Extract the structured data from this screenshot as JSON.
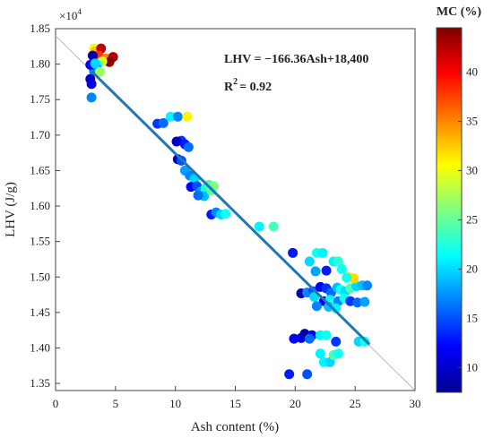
{
  "chart_data": {
    "type": "scatter",
    "xlabel": "Ash content (%)",
    "ylabel": "LHV (J/g)",
    "y_multiplier_label": "×10",
    "y_multiplier_exp": "4",
    "xlim": [
      0,
      30
    ],
    "ylim": [
      1.34,
      1.85
    ],
    "xticks": [
      "0",
      "5",
      "10",
      "15",
      "20",
      "25",
      "30"
    ],
    "yticks": [
      "1.35",
      "1.40",
      "1.45",
      "1.50",
      "1.55",
      "1.60",
      "1.65",
      "1.70",
      "1.75",
      "1.80",
      "1.85"
    ],
    "xtick_values": [
      0,
      5,
      10,
      15,
      20,
      25,
      30
    ],
    "ytick_values": [
      1.35,
      1.4,
      1.45,
      1.5,
      1.55,
      1.6,
      1.65,
      1.7,
      1.75,
      1.8,
      1.85
    ],
    "equation": "LHV = −166.36Ash+18,400",
    "r2_base": "R",
    "r2_sup": "2",
    "r2_value": "= 0.92",
    "fit_line": {
      "x": [
        3,
        26.2
      ],
      "y": [
        1.79,
        1.405
      ],
      "color": "#1f77b4"
    },
    "identity_line": {
      "x": [
        0,
        30
      ],
      "y": [
        1.84,
        1.34
      ],
      "color": "#bbbbbb"
    },
    "colorbar": {
      "title": "MC (%)",
      "range": [
        7.5,
        44.5
      ],
      "ticks": [
        "10",
        "15",
        "20",
        "25",
        "30",
        "35",
        "40"
      ],
      "tick_values": [
        10,
        15,
        20,
        25,
        30,
        35,
        40
      ],
      "colormap": "jet"
    },
    "points": [
      [
        3.2,
        1.822,
        30
      ],
      [
        3.3,
        1.818,
        33
      ],
      [
        3.8,
        1.822,
        42
      ],
      [
        3.6,
        1.812,
        38
      ],
      [
        4.2,
        1.808,
        35
      ],
      [
        4.8,
        1.81,
        43
      ],
      [
        4.5,
        1.803,
        44
      ],
      [
        3.9,
        1.804,
        29
      ],
      [
        3.5,
        1.799,
        22
      ],
      [
        3.1,
        1.8,
        14
      ],
      [
        3.4,
        1.795,
        18
      ],
      [
        3.2,
        1.79,
        17
      ],
      [
        3.7,
        1.789,
        27
      ],
      [
        2.9,
        1.779,
        10
      ],
      [
        3.0,
        1.772,
        11
      ],
      [
        3.1,
        1.812,
        9
      ],
      [
        3.0,
        1.753,
        17
      ],
      [
        2.9,
        1.799,
        12
      ],
      [
        3.3,
        1.801,
        20
      ],
      [
        8.5,
        1.716,
        14
      ],
      [
        9.0,
        1.717,
        16
      ],
      [
        9.6,
        1.726,
        21
      ],
      [
        10.2,
        1.726,
        17
      ],
      [
        11.0,
        1.726,
        31
      ],
      [
        10.5,
        1.692,
        14
      ],
      [
        10.1,
        1.691,
        10
      ],
      [
        10.8,
        1.687,
        13
      ],
      [
        11.1,
        1.683,
        16
      ],
      [
        10.2,
        1.666,
        9
      ],
      [
        10.5,
        1.664,
        15
      ],
      [
        10.8,
        1.65,
        18
      ],
      [
        11.2,
        1.643,
        17
      ],
      [
        11.6,
        1.638,
        20
      ],
      [
        11.3,
        1.627,
        12
      ],
      [
        11.8,
        1.628,
        15
      ],
      [
        12.1,
        1.62,
        18
      ],
      [
        12.5,
        1.625,
        22
      ],
      [
        12.8,
        1.63,
        24
      ],
      [
        13.2,
        1.628,
        26
      ],
      [
        12.4,
        1.614,
        19
      ],
      [
        11.9,
        1.615,
        16
      ],
      [
        13.0,
        1.622,
        25
      ],
      [
        13.0,
        1.588,
        13
      ],
      [
        13.4,
        1.591,
        17
      ],
      [
        13.8,
        1.588,
        20
      ],
      [
        14.2,
        1.589,
        22
      ],
      [
        17.0,
        1.571,
        21
      ],
      [
        18.2,
        1.571,
        24
      ],
      [
        20.5,
        1.477,
        9
      ],
      [
        21.0,
        1.478,
        17
      ],
      [
        21.5,
        1.48,
        15
      ],
      [
        22.1,
        1.486,
        12
      ],
      [
        22.6,
        1.484,
        14
      ],
      [
        23.0,
        1.478,
        16
      ],
      [
        23.5,
        1.485,
        19
      ],
      [
        23.8,
        1.482,
        22
      ],
      [
        24.2,
        1.48,
        20
      ],
      [
        24.6,
        1.484,
        24
      ],
      [
        25.1,
        1.487,
        20
      ],
      [
        25.6,
        1.488,
        19
      ],
      [
        26.0,
        1.488,
        17
      ],
      [
        21.6,
        1.472,
        20
      ],
      [
        22.4,
        1.466,
        11
      ],
      [
        22.9,
        1.468,
        21
      ],
      [
        23.2,
        1.463,
        23
      ],
      [
        23.6,
        1.466,
        17
      ],
      [
        24.1,
        1.47,
        22
      ],
      [
        24.6,
        1.466,
        14
      ],
      [
        25.2,
        1.464,
        16
      ],
      [
        25.8,
        1.465,
        18
      ],
      [
        21.8,
        1.459,
        17
      ],
      [
        22.8,
        1.458,
        19
      ],
      [
        23.4,
        1.456,
        21
      ],
      [
        24.5,
        1.5,
        31
      ],
      [
        24.9,
        1.498,
        32
      ],
      [
        24.3,
        1.499,
        22
      ],
      [
        19.8,
        1.534,
        13
      ],
      [
        21.2,
        1.522,
        20
      ],
      [
        21.8,
        1.534,
        22
      ],
      [
        22.3,
        1.534,
        21
      ],
      [
        21.7,
        1.508,
        18
      ],
      [
        22.6,
        1.509,
        13
      ],
      [
        23.2,
        1.522,
        21
      ],
      [
        23.6,
        1.522,
        23
      ],
      [
        23.9,
        1.511,
        22
      ],
      [
        19.9,
        1.413,
        12
      ],
      [
        20.5,
        1.414,
        11
      ],
      [
        20.8,
        1.42,
        9
      ],
      [
        21.4,
        1.418,
        12
      ],
      [
        21.2,
        1.413,
        16
      ],
      [
        22.1,
        1.418,
        21
      ],
      [
        22.6,
        1.418,
        22
      ],
      [
        22.1,
        1.392,
        21
      ],
      [
        22.4,
        1.38,
        21
      ],
      [
        22.9,
        1.38,
        20
      ],
      [
        23.2,
        1.39,
        24
      ],
      [
        23.6,
        1.392,
        22
      ],
      [
        23.4,
        1.409,
        14
      ],
      [
        25.3,
        1.409,
        20
      ],
      [
        25.8,
        1.409,
        22
      ],
      [
        19.5,
        1.363,
        13
      ],
      [
        21.0,
        1.363,
        15
      ]
    ]
  }
}
